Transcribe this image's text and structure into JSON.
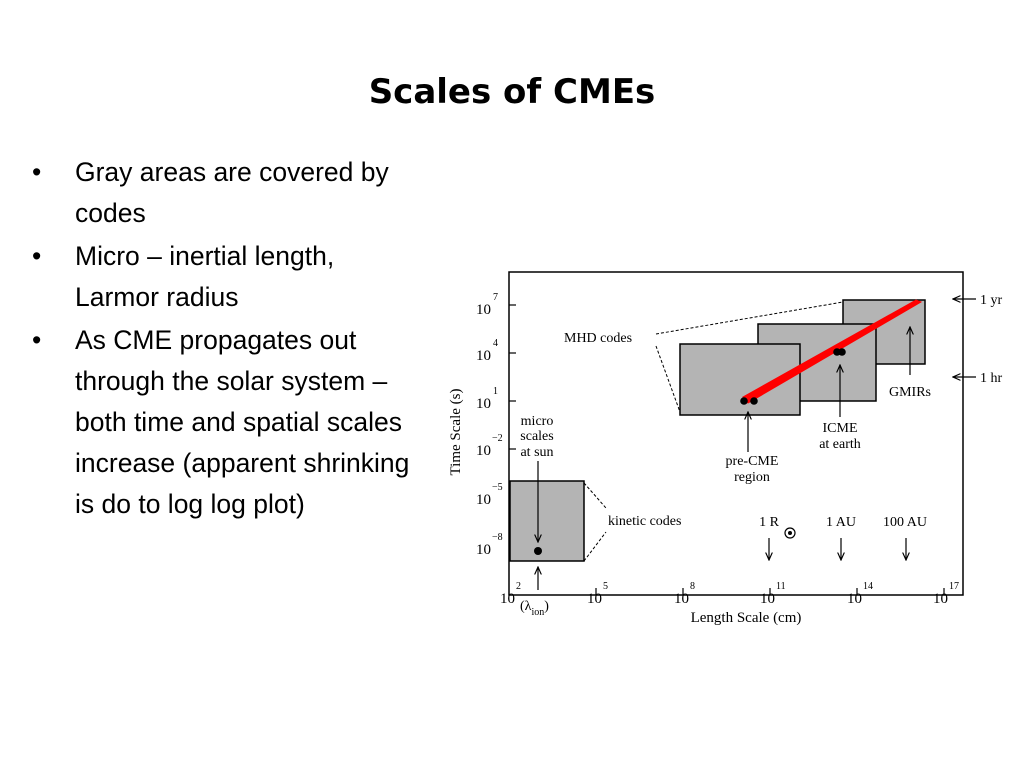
{
  "slide": {
    "title": "Scales of CMEs",
    "bullets": [
      "Gray areas are covered by codes",
      "Micro – inertial length, Larmor radius",
      "As CME propagates out through the solar system – both time and spatial scales increase (apparent shrinking is do to log log plot)"
    ],
    "bullet_symbol": "•"
  },
  "chart_data": {
    "type": "diagram",
    "xlabel": "Length Scale (cm)",
    "ylabel": "Time Scale (s)",
    "x_scale": "log",
    "y_scale": "log",
    "xlim": [
      100.0,
      1e+17
    ],
    "ylim": [
      1e-09,
      100000000.0
    ],
    "x_ticks": [
      {
        "base": "10",
        "exp": "2"
      },
      {
        "base": "10",
        "exp": "5"
      },
      {
        "base": "10",
        "exp": "8"
      },
      {
        "base": "10",
        "exp": "11"
      },
      {
        "base": "10",
        "exp": "14"
      },
      {
        "base": "10",
        "exp": "17"
      }
    ],
    "y_ticks": [
      {
        "base": "10",
        "exp": "7"
      },
      {
        "base": "10",
        "exp": "4"
      },
      {
        "base": "10",
        "exp": "1"
      },
      {
        "base": "10",
        "exp": "−2"
      },
      {
        "base": "10",
        "exp": "−5"
      },
      {
        "base": "10",
        "exp": "−8"
      }
    ],
    "regions": [
      {
        "name": "kinetic codes",
        "color": "#b4b4b4"
      },
      {
        "name": "MHD codes",
        "color": "#b4b4b4"
      }
    ],
    "annotations": {
      "micro_scales": [
        "micro",
        "scales",
        "at sun"
      ],
      "lambda_ion": "(λ",
      "lambda_sub": "ion",
      "lambda_close": ")",
      "pre_cme": [
        "pre-CME",
        "region"
      ],
      "icme": [
        "ICME",
        "at earth"
      ],
      "gmirs": "GMIRs",
      "one_yr": "1 yr",
      "one_hr": "1 hr",
      "one_r": "1 R",
      "one_au": "1 AU",
      "hundred_au": "100 AU",
      "mhd_codes": "MHD codes",
      "kinetic_codes": "kinetic codes"
    },
    "trajectory_color": "#ff0000"
  }
}
